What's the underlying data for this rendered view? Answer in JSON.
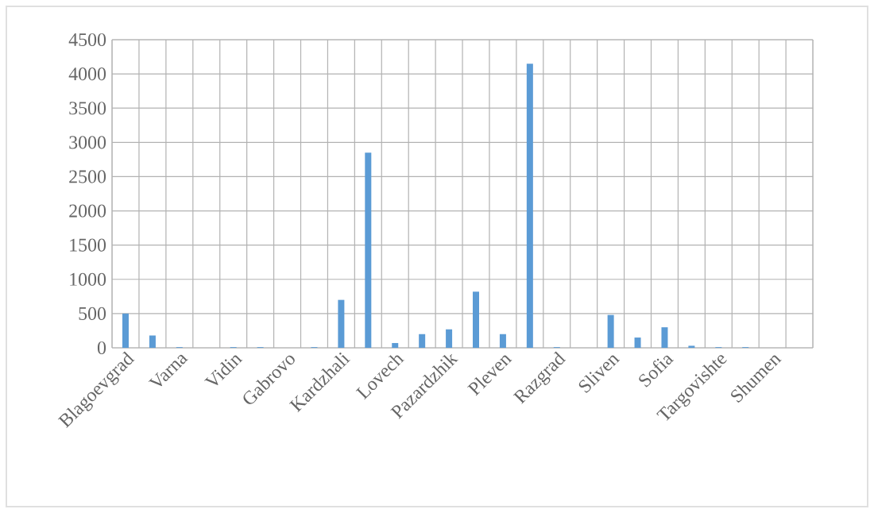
{
  "chart_data": {
    "type": "bar",
    "categories": [
      "Blagoevgrad",
      null,
      "Varna",
      null,
      "Vidin",
      null,
      "Gabrovo",
      null,
      "Kardzhali",
      null,
      "Lovech",
      null,
      "Pazardzhik",
      null,
      "Pleven",
      null,
      "Razgrad",
      null,
      "Sliven",
      null,
      "Sofia",
      null,
      "Targovishte",
      null,
      "Shumen",
      null
    ],
    "values": [
      500,
      180,
      10,
      0,
      10,
      10,
      0,
      10,
      700,
      2850,
      70,
      200,
      270,
      820,
      200,
      4150,
      10,
      0,
      480,
      150,
      300,
      30,
      10,
      10,
      0,
      0
    ],
    "color": "#5b9bd5",
    "ylim": [
      0,
      4500
    ],
    "yticks": [
      0,
      500,
      1000,
      1500,
      2000,
      2500,
      3000,
      3500,
      4000,
      4500
    ],
    "grid": true
  }
}
